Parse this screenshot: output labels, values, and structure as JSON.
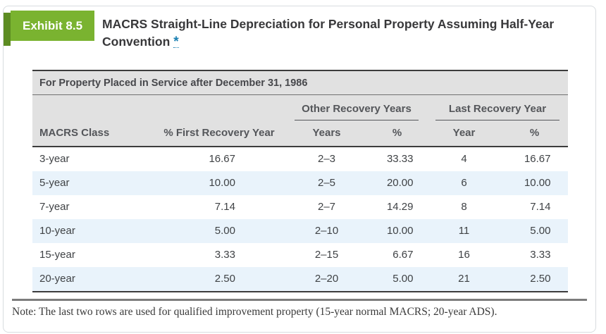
{
  "exhibit": {
    "badge": "Exhibit 8.5",
    "title": "MACRS Straight-Line Depreciation for Personal Property Assuming Half-Year Convention",
    "footnote_marker": "*"
  },
  "table": {
    "caption": "For Property Placed in Service after December 31, 1986",
    "group_headers": {
      "other": "Other Recovery Years",
      "last": "Last Recovery Year"
    },
    "columns": {
      "macrs_class": "MACRS Class",
      "first_pct": "% First Recovery Year",
      "years": "Years",
      "other_pct": "%",
      "year": "Year",
      "last_pct": "%"
    },
    "rows": [
      {
        "macrs_class": "3-year",
        "first_pct": "16.67",
        "years": "2–3",
        "other_pct": "33.33",
        "year": "4",
        "last_pct": "16.67"
      },
      {
        "macrs_class": "5-year",
        "first_pct": "10.00",
        "years": "2–5",
        "other_pct": "20.00",
        "year": "6",
        "last_pct": "10.00"
      },
      {
        "macrs_class": "7-year",
        "first_pct": "7.14",
        "years": "2–7",
        "other_pct": "14.29",
        "year": "8",
        "last_pct": "7.14"
      },
      {
        "macrs_class": "10-year",
        "first_pct": "5.00",
        "years": "2–10",
        "other_pct": "10.00",
        "year": "11",
        "last_pct": "5.00"
      },
      {
        "macrs_class": "15-year",
        "first_pct": "3.33",
        "years": "2–15",
        "other_pct": "6.67",
        "year": "16",
        "last_pct": "3.33"
      },
      {
        "macrs_class": "20-year",
        "first_pct": "2.50",
        "years": "2–20",
        "other_pct": "5.00",
        "year": "21",
        "last_pct": "2.50"
      }
    ]
  },
  "note": "Note: The last two rows are used for qualified improvement property (15-year normal MACRS; 20-year ADS).",
  "colors": {
    "badge_green": "#7ab330",
    "badge_dark_green": "#5d8c22",
    "header_gray": "#e1e1e1",
    "row_alt_blue": "#e9f3fb",
    "footnote_blue": "#1b80b2"
  }
}
